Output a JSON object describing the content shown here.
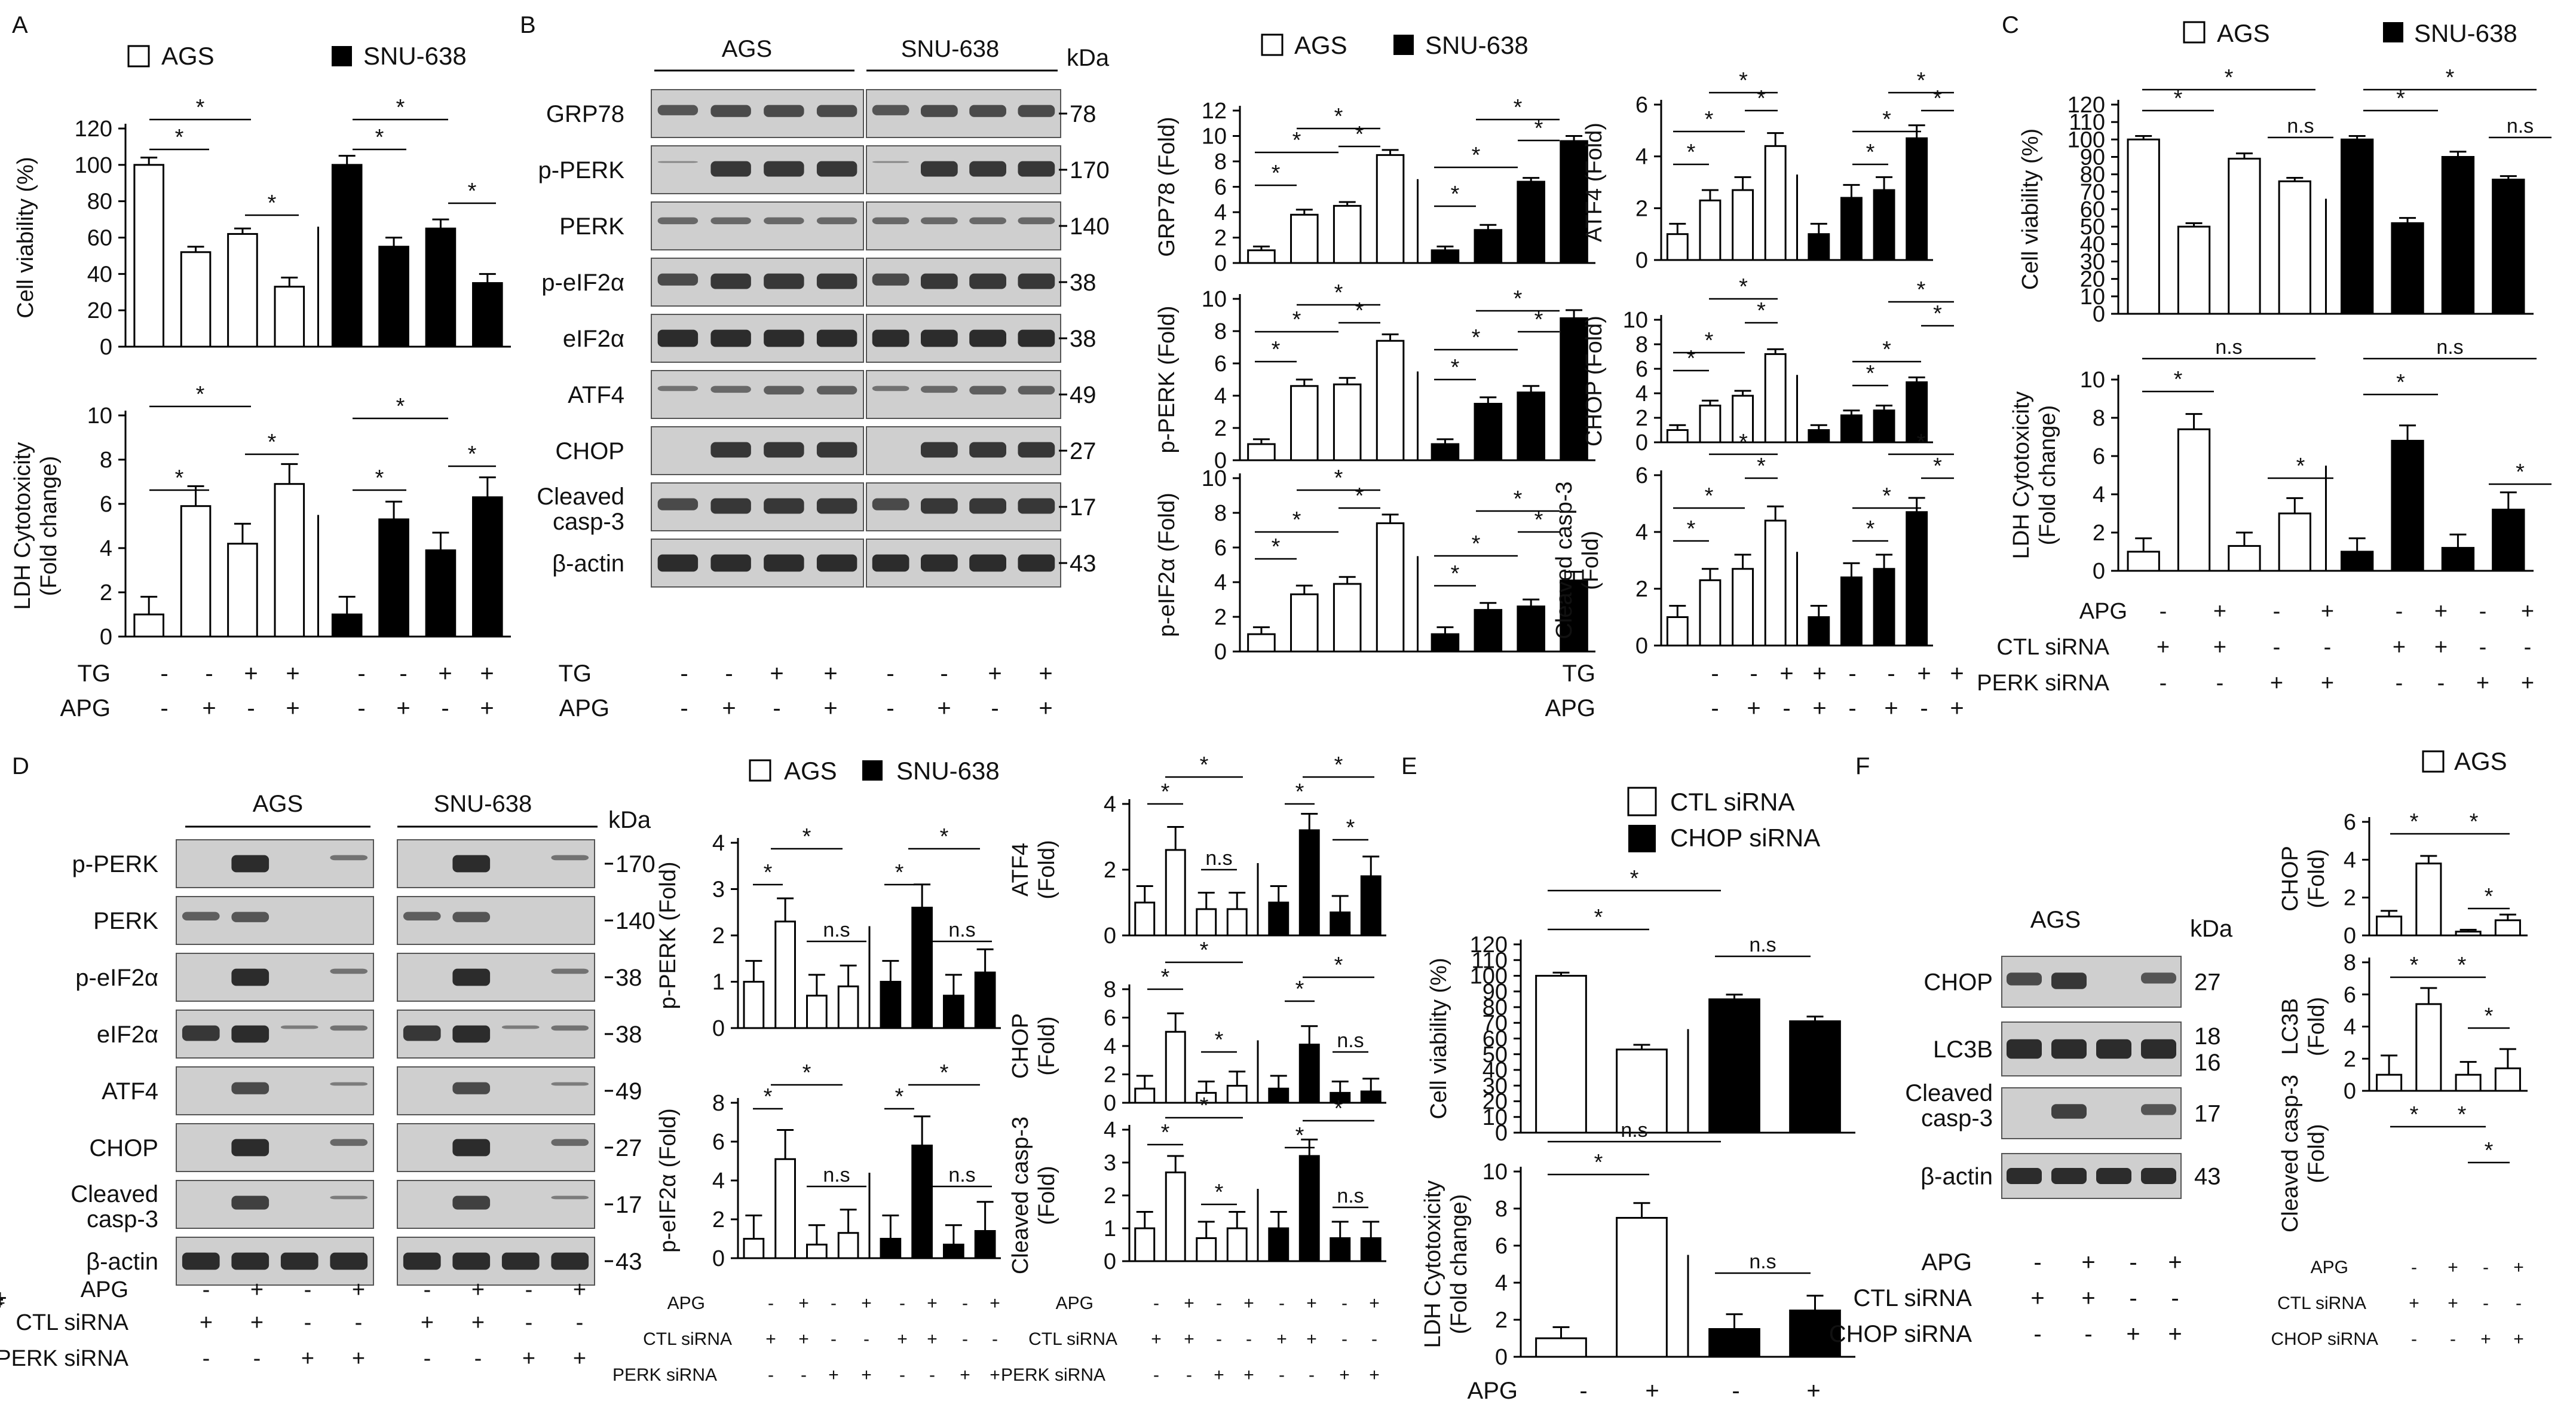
{
  "chart_data": [
    {
      "id": "A_viability",
      "type": "bar",
      "ylabel": "Cell viability (%)",
      "ylim": [
        0,
        120
      ],
      "yticks": [
        0,
        20,
        40,
        60,
        80,
        100,
        120
      ],
      "groups": [
        {
          "name": "AGS",
          "values": [
            100,
            52,
            62,
            33
          ],
          "errors": [
            4,
            3,
            3,
            5
          ]
        },
        {
          "name": "SNU-638",
          "values": [
            100,
            55,
            65,
            35
          ],
          "errors": [
            5,
            5,
            5,
            5
          ]
        }
      ]
    },
    {
      "id": "A_ldh",
      "type": "bar",
      "ylabel": "LDH Cytotoxicity (Fold change)",
      "ylim": [
        0,
        10
      ],
      "yticks": [
        0,
        2,
        4,
        6,
        8,
        10
      ],
      "groups": [
        {
          "name": "AGS",
          "values": [
            1.0,
            5.9,
            4.2,
            6.9
          ],
          "errors": [
            0.8,
            0.9,
            0.9,
            0.9
          ]
        },
        {
          "name": "SNU-638",
          "values": [
            1.0,
            5.3,
            3.9,
            6.3
          ],
          "errors": [
            0.8,
            0.8,
            0.8,
            0.9
          ]
        }
      ]
    },
    {
      "id": "B_grp78",
      "type": "bar",
      "ylabel": "GRP78 (Fold)",
      "ylim": [
        0,
        12
      ],
      "yticks": [
        0,
        2,
        4,
        6,
        8,
        10,
        12
      ],
      "groups": [
        {
          "name": "AGS",
          "values": [
            1.0,
            3.8,
            4.5,
            8.5
          ],
          "errors": [
            0.3,
            0.4,
            0.3,
            0.4
          ]
        },
        {
          "name": "SNU-638",
          "values": [
            1.0,
            2.6,
            6.4,
            9.6
          ],
          "errors": [
            0.3,
            0.4,
            0.3,
            0.4
          ]
        }
      ]
    },
    {
      "id": "B_pperk",
      "type": "bar",
      "ylabel": "p-PERK (Fold)",
      "ylim": [
        0,
        10
      ],
      "yticks": [
        0,
        2,
        4,
        6,
        8,
        10
      ],
      "groups": [
        {
          "name": "AGS",
          "values": [
            1.0,
            4.6,
            4.7,
            7.4
          ],
          "errors": [
            0.3,
            0.4,
            0.4,
            0.4
          ]
        },
        {
          "name": "SNU-638",
          "values": [
            1.0,
            3.5,
            4.2,
            8.8
          ],
          "errors": [
            0.3,
            0.4,
            0.4,
            0.5
          ]
        }
      ]
    },
    {
      "id": "B_peif2a",
      "type": "bar",
      "ylabel": "p-eIF2α (Fold)",
      "ylim": [
        0,
        10
      ],
      "yticks": [
        0,
        2,
        4,
        6,
        8,
        10
      ],
      "groups": [
        {
          "name": "AGS",
          "values": [
            1.0,
            3.3,
            3.9,
            7.4
          ],
          "errors": [
            0.4,
            0.5,
            0.4,
            0.5
          ]
        },
        {
          "name": "SNU-638",
          "values": [
            1.0,
            2.4,
            2.6,
            4.1
          ],
          "errors": [
            0.4,
            0.4,
            0.4,
            0.5
          ]
        }
      ]
    },
    {
      "id": "B_atf4",
      "type": "bar",
      "ylabel": "ATF4 (Fold)",
      "ylim": [
        0,
        6
      ],
      "yticks": [
        0,
        2,
        4,
        6
      ],
      "groups": [
        {
          "name": "AGS",
          "values": [
            1.0,
            2.3,
            2.7,
            4.4
          ],
          "errors": [
            0.4,
            0.4,
            0.5,
            0.5
          ]
        },
        {
          "name": "SNU-638",
          "values": [
            1.0,
            2.4,
            2.7,
            4.7
          ],
          "errors": [
            0.4,
            0.5,
            0.5,
            0.5
          ]
        }
      ]
    },
    {
      "id": "B_chop",
      "type": "bar",
      "ylabel": "CHOP (Fold)",
      "ylim": [
        0,
        10
      ],
      "yticks": [
        0,
        2,
        4,
        6,
        8,
        10
      ],
      "groups": [
        {
          "name": "AGS",
          "values": [
            1.0,
            3.0,
            3.8,
            7.2
          ],
          "errors": [
            0.4,
            0.4,
            0.4,
            0.4
          ]
        },
        {
          "name": "SNU-638",
          "values": [
            1.0,
            2.2,
            2.6,
            4.9
          ],
          "errors": [
            0.4,
            0.4,
            0.4,
            0.4
          ]
        }
      ]
    },
    {
      "id": "B_casp3",
      "type": "bar",
      "ylabel": "Cleaved casp-3 (Fold)",
      "ylim": [
        0,
        6
      ],
      "yticks": [
        0,
        2,
        4,
        6
      ],
      "groups": [
        {
          "name": "AGS",
          "values": [
            1.0,
            2.3,
            2.7,
            4.4
          ],
          "errors": [
            0.4,
            0.4,
            0.5,
            0.5
          ]
        },
        {
          "name": "SNU-638",
          "values": [
            1.0,
            2.4,
            2.7,
            4.7
          ],
          "errors": [
            0.4,
            0.5,
            0.5,
            0.5
          ]
        }
      ]
    },
    {
      "id": "C_viability",
      "type": "bar",
      "ylabel": "Cell viability (%)",
      "ylim": [
        0,
        120
      ],
      "yticks": [
        0,
        10,
        20,
        30,
        40,
        50,
        60,
        70,
        80,
        90,
        100,
        110,
        120
      ],
      "groups": [
        {
          "name": "AGS",
          "values": [
            100,
            50,
            89,
            76
          ],
          "errors": [
            2,
            2,
            3,
            2
          ]
        },
        {
          "name": "SNU-638",
          "values": [
            100,
            52,
            90,
            77
          ],
          "errors": [
            2,
            3,
            3,
            2
          ]
        }
      ]
    },
    {
      "id": "C_ldh",
      "type": "bar",
      "ylabel": "LDH Cytotoxicity (Fold change)",
      "ylim": [
        0,
        10
      ],
      "yticks": [
        0,
        2,
        4,
        6,
        8,
        10
      ],
      "groups": [
        {
          "name": "AGS",
          "values": [
            1.0,
            7.4,
            1.3,
            3.0
          ],
          "errors": [
            0.7,
            0.8,
            0.7,
            0.8
          ]
        },
        {
          "name": "SNU-638",
          "values": [
            1.0,
            6.8,
            1.2,
            3.2
          ],
          "errors": [
            0.7,
            0.8,
            0.7,
            0.9
          ]
        }
      ]
    },
    {
      "id": "D_pperk",
      "type": "bar",
      "ylabel": "p-PERK (Fold)",
      "ylim": [
        0,
        4
      ],
      "yticks": [
        0,
        1,
        2,
        3,
        4
      ],
      "groups": [
        {
          "name": "AGS",
          "values": [
            1.0,
            2.3,
            0.7,
            0.9
          ],
          "errors": [
            0.45,
            0.5,
            0.45,
            0.45
          ]
        },
        {
          "name": "SNU-638",
          "values": [
            1.0,
            2.6,
            0.7,
            1.2
          ],
          "errors": [
            0.45,
            0.5,
            0.45,
            0.5
          ]
        }
      ]
    },
    {
      "id": "D_peif2a",
      "type": "bar",
      "ylabel": "p-eIF2α (Fold)",
      "ylim": [
        0,
        8
      ],
      "yticks": [
        0,
        2,
        4,
        6,
        8
      ],
      "groups": [
        {
          "name": "AGS",
          "values": [
            1.0,
            5.1,
            0.7,
            1.3
          ],
          "errors": [
            1.2,
            1.5,
            1.0,
            1.2
          ]
        },
        {
          "name": "SNU-638",
          "values": [
            1.0,
            5.8,
            0.7,
            1.4
          ],
          "errors": [
            1.2,
            1.5,
            1.0,
            1.5
          ]
        }
      ]
    },
    {
      "id": "D_atf4",
      "type": "bar",
      "ylabel": "ATF4 (Fold)",
      "ylim": [
        0,
        4
      ],
      "yticks": [
        0,
        2,
        4
      ],
      "groups": [
        {
          "name": "AGS",
          "values": [
            1.0,
            2.6,
            0.8,
            0.8
          ],
          "errors": [
            0.5,
            0.7,
            0.5,
            0.5
          ]
        },
        {
          "name": "SNU-638",
          "values": [
            1.0,
            3.2,
            0.7,
            1.8
          ],
          "errors": [
            0.5,
            0.5,
            0.5,
            0.6
          ]
        }
      ]
    },
    {
      "id": "D_chop",
      "type": "bar",
      "ylabel": "CHOP (Fold)",
      "ylim": [
        0,
        8
      ],
      "yticks": [
        0,
        2,
        4,
        6,
        8
      ],
      "groups": [
        {
          "name": "AGS",
          "values": [
            1.0,
            5.0,
            0.7,
            1.2
          ],
          "errors": [
            0.9,
            1.3,
            0.8,
            1.0
          ]
        },
        {
          "name": "SNU-638",
          "values": [
            1.0,
            4.1,
            0.7,
            0.8
          ],
          "errors": [
            0.9,
            1.3,
            0.8,
            0.9
          ]
        }
      ]
    },
    {
      "id": "D_casp3",
      "type": "bar",
      "ylabel": "Cleaved casp-3 (Fold)",
      "ylim": [
        0,
        4
      ],
      "yticks": [
        0,
        1,
        2,
        3,
        4
      ],
      "groups": [
        {
          "name": "AGS",
          "values": [
            1.0,
            2.7,
            0.7,
            1.0
          ],
          "errors": [
            0.5,
            0.5,
            0.5,
            0.5
          ]
        },
        {
          "name": "SNU-638",
          "values": [
            1.0,
            3.2,
            0.7,
            0.7
          ],
          "errors": [
            0.5,
            0.5,
            0.5,
            0.5
          ]
        }
      ]
    },
    {
      "id": "E_viability",
      "type": "bar",
      "ylabel": "Cell viability (%)",
      "ylim": [
        0,
        120
      ],
      "yticks": [
        0,
        10,
        20,
        30,
        40,
        50,
        60,
        70,
        80,
        90,
        100,
        110,
        120
      ],
      "groups": [
        {
          "name": "CTL siRNA",
          "values": [
            100,
            53
          ],
          "errors": [
            2,
            3
          ]
        },
        {
          "name": "CHOP siRNA",
          "values": [
            85,
            71
          ],
          "errors": [
            3,
            3
          ]
        }
      ]
    },
    {
      "id": "E_ldh",
      "type": "bar",
      "ylabel": "LDH Cytotoxicity (Fold change)",
      "ylim": [
        0,
        10
      ],
      "yticks": [
        0,
        2,
        4,
        6,
        8,
        10
      ],
      "groups": [
        {
          "name": "CTL siRNA",
          "values": [
            1.0,
            7.5
          ],
          "errors": [
            0.6,
            0.8
          ]
        },
        {
          "name": "CHOP siRNA",
          "values": [
            1.5,
            2.5
          ],
          "errors": [
            0.8,
            0.8
          ]
        }
      ]
    },
    {
      "id": "F_chop",
      "type": "bar",
      "ylabel": "CHOP (Fold)",
      "ylim": [
        0,
        6
      ],
      "yticks": [
        0,
        2,
        4,
        6
      ],
      "groups": [
        {
          "name": "AGS",
          "values": [
            1.0,
            3.8,
            0.2,
            0.8
          ],
          "errors": [
            0.3,
            0.4,
            0.1,
            0.3
          ]
        }
      ]
    },
    {
      "id": "F_lc3b",
      "type": "bar",
      "ylabel": "LC3B (Fold)",
      "ylim": [
        0,
        8
      ],
      "yticks": [
        0,
        2,
        4,
        6,
        8
      ],
      "groups": [
        {
          "name": "AGS",
          "values": [
            1.0,
            5.4,
            1.0,
            1.4
          ],
          "errors": [
            1.2,
            1.0,
            0.8,
            1.2
          ]
        }
      ]
    },
    {
      "id": "F_casp3",
      "type": "bar",
      "ylabel": "Cleaved casp-3 (Fold)",
      "ylim": [
        0,
        6
      ],
      "yticks": [],
      "groups": []
    }
  ],
  "panels": {
    "A": {
      "letter": "A"
    },
    "B": {
      "letter": "B"
    },
    "C": {
      "letter": "C"
    },
    "D": {
      "letter": "D"
    },
    "E": {
      "letter": "E"
    },
    "F": {
      "letter": "F"
    }
  },
  "legends": {
    "ags": "AGS",
    "snu": "SNU-638",
    "ctl_sirna": "CTL siRNA",
    "chop_sirna": "CHOP siRNA"
  },
  "blots": {
    "b_cell_lines": [
      "AGS",
      "SNU-638"
    ],
    "kda": "kDa",
    "b_rows": [
      {
        "label": "GRP78",
        "kda": "78"
      },
      {
        "label": "p-PERK",
        "kda": "170"
      },
      {
        "label": "PERK",
        "kda": "140"
      },
      {
        "label": "p-eIF2α",
        "kda": "38"
      },
      {
        "label": "eIF2α",
        "kda": "38"
      },
      {
        "label": "ATF4",
        "kda": "49"
      },
      {
        "label": "CHOP",
        "kda": "27"
      },
      {
        "label": "Cleaved casp-3",
        "kda": "17"
      },
      {
        "label": "β-actin",
        "kda": "43"
      }
    ],
    "d_rows": [
      {
        "label": "p-PERK",
        "kda": "170"
      },
      {
        "label": "PERK",
        "kda": "140"
      },
      {
        "label": "p-eIF2α",
        "kda": "38"
      },
      {
        "label": "eIF2α",
        "kda": "38"
      },
      {
        "label": "ATF4",
        "kda": "49"
      },
      {
        "label": "CHOP",
        "kda": "27"
      },
      {
        "label": "Cleaved casp-3",
        "kda": "17"
      },
      {
        "label": "β-actin",
        "kda": "43"
      }
    ],
    "f_cell_line": "AGS",
    "f_rows": [
      {
        "label": "CHOP",
        "kda": "27"
      },
      {
        "label": "LC3B",
        "kda": "18 16"
      },
      {
        "label": "Cleaved casp-3",
        "kda": "17"
      },
      {
        "label": "β-actin",
        "kda": "43"
      }
    ]
  },
  "treatments": {
    "tg": "TG",
    "apg": "APG",
    "ctl_sirna": "CTL siRNA",
    "perk_sirna": "PERK siRNA",
    "chop_sirna": "CHOP siRNA",
    "tg_signs": [
      "-",
      "-",
      "+",
      "+",
      "-",
      "-",
      "+",
      "+"
    ],
    "apg_signs_tg": [
      "-",
      "+",
      "-",
      "+",
      "-",
      "+",
      "-",
      "+"
    ],
    "apg_signs_si": [
      "-",
      "+",
      "-",
      "+",
      "-",
      "+",
      "-",
      "+"
    ],
    "ctl_signs": [
      "+",
      "+",
      "-",
      "-",
      "+",
      "+",
      "-",
      "-"
    ],
    "perk_signs": [
      "-",
      "-",
      "+",
      "+",
      "-",
      "-",
      "+",
      "+"
    ],
    "apg_signs_e": [
      "-",
      "+",
      "-",
      "+"
    ],
    "chop_signs": [
      "-",
      "-",
      "+",
      "+"
    ]
  },
  "significance": {
    "star": "*",
    "ns": "n.s"
  }
}
